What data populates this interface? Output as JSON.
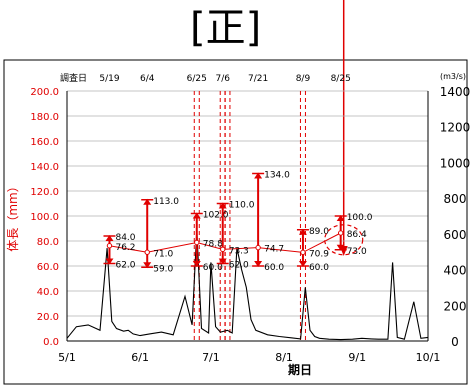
{
  "title": "[正]",
  "chart_data": {
    "type": "line",
    "ylabel_left": "体長（mm）",
    "ylabel_right": "(m3/s)",
    "xlabel": "期日",
    "survey_label": "調査日",
    "survey_dates": [
      "5/19",
      "6/4",
      "6/25",
      "7/6",
      "7/21",
      "8/9",
      "8/25"
    ],
    "xlim": [
      "5/1",
      "10/1"
    ],
    "ylim_left": [
      0,
      200
    ],
    "ylim_right": [
      0,
      1400
    ],
    "x_ticks": [
      "5/1",
      "6/1",
      "7/1",
      "8/1",
      "9/1",
      "10/1"
    ],
    "left_ticks": [
      "0.0",
      "20.0",
      "40.0",
      "60.0",
      "80.0",
      "100.0",
      "120.0",
      "140.0",
      "160.0",
      "180.0",
      "200.0"
    ],
    "right_ticks": [
      "0",
      "200",
      "400",
      "600",
      "800",
      "1000",
      "1200",
      "1400"
    ],
    "body_length": [
      {
        "date": "5/19",
        "max": 84.0,
        "mean": 76.2,
        "min": 62.0,
        "max_label": "84.0",
        "mean_label": "76.2",
        "min_label": "62.0"
      },
      {
        "date": "6/4",
        "max": 113.0,
        "mean": 71.0,
        "min": 59.0,
        "max_label": "113.0",
        "mean_label": "71.0",
        "min_label": "59.0"
      },
      {
        "date": "6/25",
        "max": 102.0,
        "mean": 78.8,
        "min": 60.0,
        "max_label": "102.0",
        "mean_label": "78.8",
        "min_label": "60.0"
      },
      {
        "date": "7/6",
        "max": 110.0,
        "mean": 73.3,
        "min": 62.0,
        "max_label": "110.0",
        "mean_label": "73.3",
        "min_label": "62.0"
      },
      {
        "date": "7/21",
        "max": 134.0,
        "mean": 74.7,
        "min": 60.0,
        "max_label": "134.0",
        "mean_label": "74.7",
        "min_label": "60.0"
      },
      {
        "date": "8/9",
        "max": 89.0,
        "mean": 70.9,
        "min": 60.0,
        "max_label": "89.0",
        "mean_label": "70.9",
        "min_label": "60.0"
      },
      {
        "date": "8/25",
        "max": 100.0,
        "mean": 86.4,
        "min": 73.0,
        "max_label": "100.0",
        "mean_label": "86.4",
        "min_label": "73.0"
      }
    ],
    "discharge": {
      "dates": [
        "5/1",
        "5/5",
        "5/10",
        "5/15",
        "5/18",
        "5/20",
        "5/22",
        "5/25",
        "5/27",
        "5/29",
        "6/1",
        "6/5",
        "6/10",
        "6/15",
        "6/20",
        "6/23",
        "6/25",
        "6/27",
        "6/30",
        "7/1",
        "7/3",
        "7/5",
        "7/8",
        "7/10",
        "7/12",
        "7/14",
        "7/16",
        "7/18",
        "7/20",
        "7/25",
        "7/30",
        "8/4",
        "8/8",
        "8/10",
        "8/12",
        "8/14",
        "8/16",
        "8/20",
        "8/25",
        "8/30",
        "9/3",
        "9/7",
        "9/10",
        "9/14",
        "9/16",
        "9/18",
        "9/21",
        "9/25",
        "9/28",
        "10/1"
      ],
      "values": [
        15,
        80,
        90,
        60,
        520,
        110,
        70,
        55,
        60,
        40,
        30,
        40,
        50,
        35,
        250,
        90,
        620,
        70,
        45,
        440,
        80,
        50,
        60,
        45,
        520,
        400,
        300,
        120,
        60,
        35,
        25,
        18,
        12,
        300,
        60,
        25,
        15,
        10,
        8,
        10,
        15,
        12,
        10,
        10,
        440,
        20,
        10,
        220,
        15,
        20
      ]
    },
    "dashed_markers": [
      "6/25",
      "7/6",
      "8/9"
    ],
    "colors": {
      "body_length": "#e00000",
      "discharge": "#000000",
      "grid": "#b0b0b0"
    }
  }
}
